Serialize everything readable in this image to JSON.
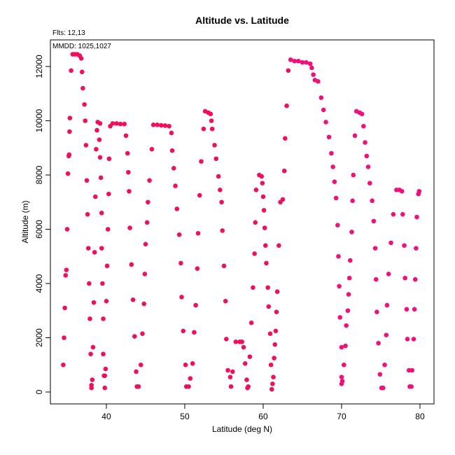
{
  "chart_data": {
    "type": "scatter",
    "title": "Altitude vs. Latitude",
    "annotations": [
      "Flts: 12,13",
      "MMDD: 1025,1027"
    ],
    "x_label": "Latitude (deg N)",
    "y_label": "Altitude (m)",
    "xlim": [
      32.86,
      81.79
    ],
    "ylim": [
      -439,
      12981
    ],
    "xticks": [
      40,
      50,
      60,
      70,
      80
    ],
    "yticks": [
      0,
      2000,
      4000,
      6000,
      8000,
      10000,
      12000
    ],
    "series": [
      {
        "color": "#f0105a",
        "x": [
          34.5,
          34.6,
          34.7,
          34.8,
          34.9,
          35.0,
          35.1,
          35.2,
          35.25,
          35.3,
          35.35,
          35.5,
          35.7,
          36.0,
          36.3,
          36.6,
          36.8,
          36.9,
          37.0,
          37.2,
          37.3,
          37.4,
          37.5,
          37.6,
          37.7,
          37.8,
          37.9,
          38.0,
          38.1,
          38.1,
          38.2,
          38.3,
          38.4,
          38.5,
          38.6,
          38.7,
          38.8,
          38.9,
          39.2,
          39.1,
          39.2,
          39.3,
          39.4,
          39.4,
          39.5,
          39.6,
          39.6,
          39.7,
          39.8,
          39.8,
          39.9,
          40.0,
          40.1,
          40.2,
          40.3,
          40.35,
          40.5,
          40.8,
          41.3,
          41.8,
          42.3,
          42.5,
          42.7,
          42.8,
          42.9,
          43.0,
          43.2,
          43.4,
          43.6,
          43.8,
          43.9,
          44.1,
          44.4,
          44.6,
          44.8,
          44.9,
          45.0,
          45.2,
          45.3,
          45.5,
          45.8,
          46.0,
          46.5,
          47.0,
          47.5,
          48.0,
          48.3,
          48.4,
          48.6,
          48.8,
          49.0,
          49.3,
          49.5,
          49.6,
          49.8,
          50.1,
          50.2,
          50.5,
          50.7,
          51.0,
          51.2,
          51.4,
          51.6,
          51.7,
          51.9,
          52.1,
          52.4,
          52.6,
          53.0,
          53.3,
          53.4,
          53.5,
          53.8,
          54.0,
          54.3,
          54.5,
          54.7,
          54.8,
          55.0,
          55.2,
          55.3,
          55.5,
          55.8,
          55.9,
          56.1,
          56.5,
          57.0,
          57.3,
          57.5,
          57.7,
          57.9,
          58.0,
          58.1,
          58.3,
          58.5,
          58.7,
          58.9,
          59.0,
          59.1,
          59.5,
          59.8,
          59.9,
          60.0,
          60.1,
          60.2,
          60.3,
          60.4,
          60.6,
          60.7,
          60.9,
          61.0,
          61.2,
          61.1,
          61.3,
          61.4,
          61.5,
          61.6,
          61.7,
          61.8,
          62.0,
          62.2,
          62.5,
          62.7,
          62.8,
          63.0,
          63.2
        ],
        "values": [
          1000,
          2000,
          3100,
          4300,
          4500,
          6000,
          8050,
          8700,
          8750,
          9600,
          10100,
          11850,
          12450,
          12450,
          12450,
          12400,
          12300,
          11800,
          11200,
          10600,
          10000,
          9100,
          7800,
          6550,
          5300,
          4000,
          2700,
          1400,
          250,
          150,
          450,
          1650,
          3300,
          5150,
          7200,
          8950,
          9650,
          9950,
          9900,
          9300,
          8650,
          7900,
          6600,
          5300,
          4000,
          2700,
          1400,
          600,
          150,
          600,
          850,
          3350,
          4650,
          6000,
          7300,
          8600,
          9800,
          9900,
          9900,
          9880,
          9880,
          9450,
          8800,
          8100,
          7400,
          6050,
          4700,
          3400,
          2050,
          750,
          200,
          200,
          1000,
          2150,
          3250,
          4350,
          5450,
          6250,
          7000,
          7800,
          8950,
          9850,
          9850,
          9830,
          9820,
          9800,
          9550,
          8900,
          8250,
          7600,
          6750,
          5800,
          4750,
          3500,
          2250,
          1000,
          200,
          200,
          500,
          1050,
          2200,
          3200,
          4550,
          5850,
          7250,
          8500,
          9700,
          10350,
          10300,
          10250,
          10000,
          9700,
          9100,
          8600,
          7950,
          7450,
          7000,
          5950,
          4650,
          3350,
          1950,
          800,
          550,
          200,
          750,
          1850,
          1850,
          1850,
          1650,
          1050,
          450,
          150,
          200,
          1300,
          2550,
          3850,
          5100,
          6250,
          7450,
          8000,
          7950,
          7700,
          7200,
          6700,
          6050,
          5400,
          4750,
          3850,
          3150,
          2150,
          1000,
          300,
          100,
          550,
          1250,
          1750,
          2250,
          2950,
          3700,
          5400,
          7000,
          7100,
          8150,
          9350,
          10550,
          11850
        ]
      },
      {
        "color": "#f0107a",
        "x": [
          63.5,
          64,
          64.5,
          65,
          65.5,
          66,
          66.2,
          66.4,
          66.6,
          67.0,
          67.4,
          67.7,
          68.0,
          68.4,
          68.7,
          68.9,
          69.1,
          69.3,
          69.5,
          69.6,
          69.7,
          69.8,
          70.0,
          70.0,
          70.0,
          70.1,
          70.3,
          70.5,
          70.6,
          70.8,
          70.9,
          71.0,
          71.1,
          71.3,
          71.4,
          71.5,
          71.7,
          71.9,
          72.3,
          72.6,
          72.8,
          73.0,
          73.2,
          73.4,
          73.6,
          73.9,
          74.1,
          74.3,
          74.4,
          74.5,
          74.7,
          74.9,
          75.1,
          75.3,
          75.5,
          75.7,
          75.8,
          76.0,
          76.3,
          76.6,
          77.0,
          77.4,
          77.7,
          77.8,
          78.0,
          78.1,
          78.3,
          78.4,
          78.6,
          78.7,
          78.9,
          79.0,
          79.2,
          79.3,
          79.4,
          79.5,
          79.6,
          79.8,
          79.9
        ],
        "values": [
          12250,
          12200,
          12200,
          12150,
          12150,
          12100,
          11950,
          11700,
          11500,
          11450,
          10850,
          10400,
          9950,
          9400,
          8800,
          8300,
          7750,
          7150,
          6150,
          5000,
          3900,
          2750,
          1650,
          550,
          300,
          400,
          1000,
          1700,
          2450,
          3000,
          3600,
          4200,
          4850,
          5900,
          7050,
          8000,
          9450,
          10350,
          10300,
          10250,
          9800,
          9200,
          8700,
          8300,
          7700,
          7050,
          6300,
          5300,
          4150,
          2950,
          1800,
          650,
          150,
          150,
          1000,
          2100,
          3200,
          4350,
          5500,
          6550,
          7450,
          7450,
          7400,
          6550,
          5400,
          4200,
          3050,
          1950,
          800,
          200,
          200,
          800,
          1950,
          3050,
          4150,
          5300,
          6450,
          7300,
          7400
        ]
      }
    ]
  }
}
